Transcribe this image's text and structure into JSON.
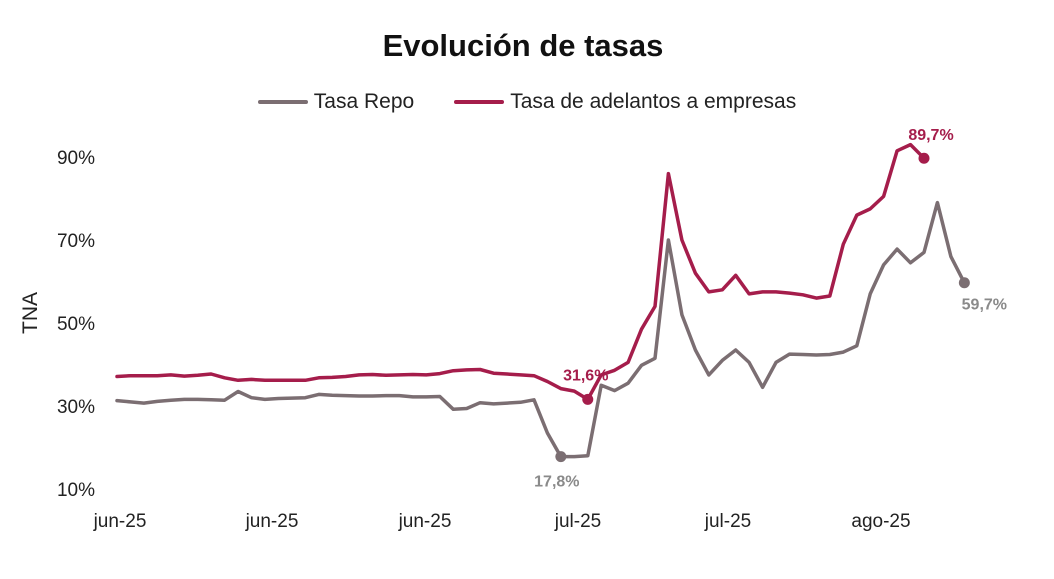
{
  "chart_data": {
    "type": "line",
    "title": "Evolución de tasas",
    "ylabel": "TNA",
    "xlabel": "",
    "ylim": [
      10,
      90
    ],
    "yticks": [
      "10%",
      "30%",
      "50%",
      "70%",
      "90%"
    ],
    "xticks": [
      "jun-25",
      "jun-25",
      "jun-25",
      "jul-25",
      "jul-25",
      "ago-25"
    ],
    "legend_position": "top",
    "series": [
      {
        "name": "Tasa Repo",
        "color": "#7b6e72",
        "values": [
          31.3,
          31.0,
          30.7,
          31.1,
          31.4,
          31.6,
          31.6,
          31.5,
          31.4,
          33.5,
          32.0,
          31.6,
          31.8,
          31.9,
          32.0,
          32.8,
          32.6,
          32.5,
          32.4,
          32.4,
          32.5,
          32.5,
          32.2,
          32.2,
          32.3,
          29.2,
          29.4,
          30.8,
          30.5,
          30.7,
          30.9,
          31.5,
          23.5,
          17.8,
          17.8,
          18.0,
          35.0,
          33.7,
          35.5,
          39.8,
          41.5,
          70.0,
          52.0,
          43.5,
          37.5,
          41.0,
          43.5,
          40.5,
          34.5,
          40.5,
          42.5,
          42.4,
          42.3,
          42.4,
          43.0,
          44.5,
          57.0,
          64.0,
          67.8,
          64.5,
          67.0,
          79.0,
          66.0,
          59.7
        ]
      },
      {
        "name": "Tasa de adelantos a empresas",
        "color": "#a51d4b",
        "values": [
          37.1,
          37.3,
          37.3,
          37.3,
          37.5,
          37.2,
          37.4,
          37.7,
          36.8,
          36.2,
          36.4,
          36.2,
          36.2,
          36.2,
          36.2,
          36.8,
          36.9,
          37.1,
          37.5,
          37.6,
          37.4,
          37.5,
          37.6,
          37.5,
          37.8,
          38.5,
          38.7,
          38.8,
          37.9,
          37.7,
          37.5,
          37.3,
          35.9,
          34.2,
          33.6,
          31.6,
          37.5,
          38.6,
          40.5,
          48.5,
          54.0,
          86.0,
          70.0,
          62.0,
          57.5,
          58.0,
          61.5,
          57.0,
          57.5,
          57.5,
          57.2,
          56.8,
          56.0,
          56.5,
          69.0,
          76.0,
          77.5,
          80.5,
          91.5,
          93.0,
          89.7
        ]
      }
    ],
    "annotations": [
      {
        "text": "31,6%",
        "series": 1,
        "color": "#a51d4b"
      },
      {
        "text": "17,8%",
        "series": 0,
        "color": "#8a8a8a"
      },
      {
        "text": "89,7%",
        "series": 1,
        "color": "#a51d4b"
      },
      {
        "text": "59,7%",
        "series": 0,
        "color": "#8a8a8a"
      }
    ],
    "grid": false
  }
}
